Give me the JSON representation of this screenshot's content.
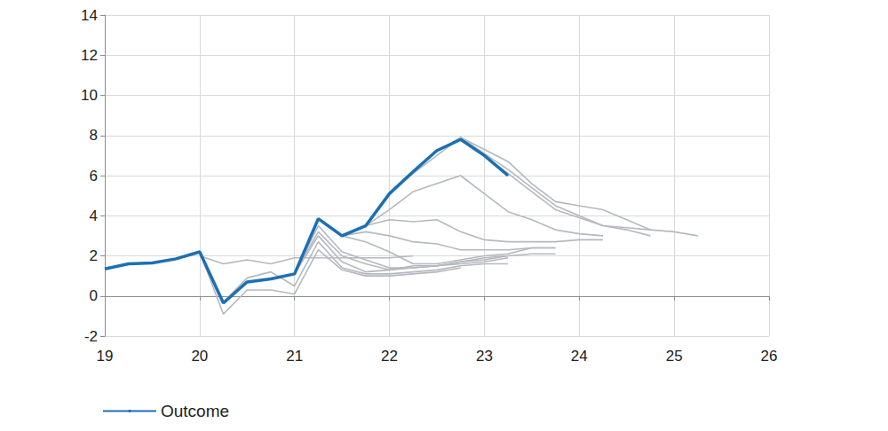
{
  "chart_data": {
    "type": "line",
    "x": [
      19,
      19.25,
      19.5,
      19.75,
      20,
      20.25,
      20.5,
      20.75,
      21,
      21.25,
      21.5,
      21.75,
      22,
      22.25,
      22.5,
      22.75,
      23,
      23.25,
      23.5,
      23.75,
      24,
      24.25,
      24.5,
      24.75,
      25,
      25.25
    ],
    "xlim": [
      19,
      26
    ],
    "xticks": [
      19,
      20,
      21,
      22,
      23,
      24,
      25,
      26
    ],
    "ylim": [
      -2,
      14
    ],
    "yticks": [
      -2,
      0,
      2,
      4,
      6,
      8,
      10,
      12,
      14
    ],
    "grid": true,
    "legend": "bottom-left",
    "series": [
      {
        "color": "#b4b9bf",
        "values": [
          null,
          null,
          null,
          null,
          2.0,
          1.6,
          1.8,
          1.6,
          1.9,
          1.9,
          1.9,
          1.9,
          1.9,
          2.0,
          null,
          null,
          null,
          null,
          null,
          null,
          null,
          null,
          null,
          null,
          null,
          null
        ]
      },
      {
        "color": "#b4b9bf",
        "values": [
          null,
          null,
          null,
          null,
          2.2,
          -0.9,
          0.3,
          0.3,
          0.1,
          2.3,
          1.3,
          1.0,
          1.0,
          1.1,
          1.2,
          1.4,
          null,
          null,
          null,
          null,
          null,
          null,
          null,
          null,
          null,
          null
        ]
      },
      {
        "color": "#b4b9bf",
        "values": [
          null,
          null,
          null,
          null,
          2.2,
          -0.3,
          0.9,
          1.2,
          0.5,
          2.7,
          1.4,
          1.1,
          1.1,
          1.2,
          1.3,
          1.5,
          1.6,
          1.6,
          null,
          null,
          null,
          null,
          null,
          null,
          null,
          null
        ]
      },
      {
        "color": "#b4b9bf",
        "values": [
          null,
          null,
          null,
          null,
          null,
          null,
          null,
          null,
          1.1,
          3.0,
          1.7,
          1.2,
          1.3,
          1.4,
          1.5,
          1.6,
          1.7,
          1.9,
          null,
          null,
          null,
          null,
          null,
          null,
          null,
          null
        ]
      },
      {
        "color": "#b4b9bf",
        "values": [
          null,
          null,
          null,
          null,
          null,
          null,
          null,
          null,
          1.1,
          3.2,
          2.0,
          1.6,
          1.3,
          1.5,
          1.5,
          1.7,
          1.8,
          2.0,
          null,
          null,
          null,
          null,
          null,
          null,
          null,
          null
        ]
      },
      {
        "color": "#b4b9bf",
        "values": [
          null,
          null,
          null,
          null,
          null,
          null,
          null,
          null,
          1.1,
          3.5,
          2.2,
          1.8,
          1.4,
          1.4,
          1.5,
          1.7,
          1.9,
          2.0,
          2.1,
          2.1,
          null,
          null,
          null,
          null,
          null,
          null
        ]
      },
      {
        "color": "#b4b9bf",
        "values": [
          null,
          null,
          null,
          null,
          null,
          null,
          null,
          null,
          null,
          null,
          3.0,
          2.7,
          2.2,
          1.6,
          1.6,
          1.8,
          2.0,
          2.1,
          2.4,
          2.4,
          null,
          null,
          null,
          null,
          null,
          null
        ]
      },
      {
        "color": "#b4b9bf",
        "values": [
          null,
          null,
          null,
          null,
          null,
          null,
          null,
          null,
          null,
          null,
          3.0,
          3.2,
          3.0,
          2.7,
          2.6,
          2.3,
          2.3,
          2.3,
          2.4,
          2.4,
          null,
          null,
          null,
          null,
          null,
          null
        ]
      },
      {
        "color": "#b4b9bf",
        "values": [
          null,
          null,
          null,
          null,
          null,
          null,
          null,
          null,
          null,
          null,
          null,
          3.5,
          3.8,
          3.7,
          3.8,
          3.2,
          2.8,
          2.7,
          2.7,
          2.7,
          2.8,
          2.8,
          null,
          null,
          null,
          null
        ]
      },
      {
        "color": "#b4b9bf",
        "values": [
          null,
          null,
          null,
          null,
          null,
          null,
          null,
          null,
          null,
          null,
          null,
          3.5,
          4.3,
          5.2,
          5.6,
          6.0,
          5.1,
          4.2,
          3.8,
          3.3,
          3.1,
          3.0,
          null,
          null,
          null,
          null
        ]
      },
      {
        "color": "#b4b9bf",
        "values": [
          null,
          null,
          null,
          null,
          null,
          null,
          null,
          null,
          null,
          null,
          null,
          null,
          5.1,
          6.1,
          7.0,
          7.9,
          7.3,
          6.7,
          5.6,
          4.7,
          4.5,
          4.3,
          3.8,
          3.3,
          null,
          null
        ]
      },
      {
        "color": "#b4b9bf",
        "values": [
          null,
          null,
          null,
          null,
          null,
          null,
          null,
          null,
          null,
          null,
          null,
          null,
          null,
          null,
          7.2,
          7.9,
          7.1,
          6.3,
          5.4,
          4.5,
          4.0,
          3.5,
          3.3,
          3.0,
          null,
          null
        ]
      },
      {
        "color": "#b4b9bf",
        "values": [
          null,
          null,
          null,
          null,
          null,
          null,
          null,
          null,
          null,
          null,
          null,
          null,
          null,
          null,
          null,
          7.8,
          7.0,
          6.1,
          5.2,
          4.3,
          3.9,
          3.5,
          3.4,
          3.3,
          3.2,
          3.0
        ]
      },
      {
        "name": "Outcome",
        "color": "#1c6fb5",
        "values": [
          1.35,
          1.6,
          1.65,
          1.85,
          2.2,
          -0.35,
          0.7,
          0.85,
          1.1,
          3.85,
          3.0,
          3.5,
          5.1,
          6.2,
          7.25,
          7.8,
          7.0,
          6.0,
          null,
          null,
          null,
          null,
          null,
          null,
          null,
          null
        ]
      }
    ]
  }
}
